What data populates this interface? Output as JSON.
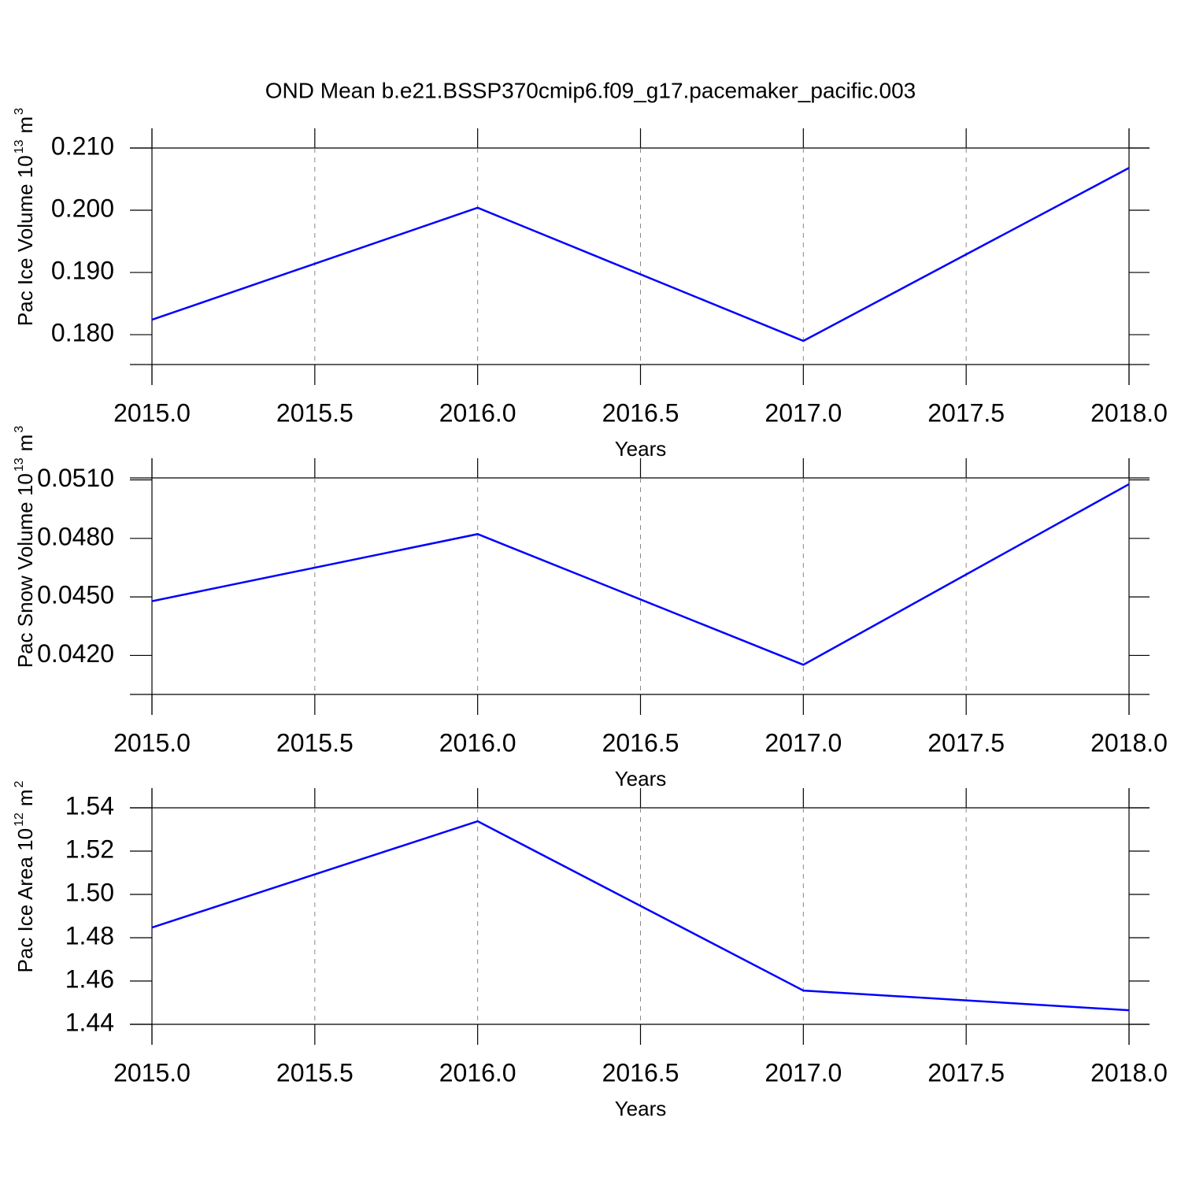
{
  "chart_data": [
    {
      "type": "line",
      "title": "OND Mean b.e21.BSSP370cmip6.f09_g17.pacemaker_pacific.003",
      "x": [
        2015,
        2016,
        2017,
        2018
      ],
      "values": [
        0.1824,
        0.2004,
        0.179,
        0.2068
      ],
      "color": "#0000ff",
      "xlim": [
        2015,
        2018
      ],
      "xticks": [
        {
          "value": 2015,
          "label": "2015.0"
        },
        {
          "value": 2015.5,
          "label": "2015.5"
        },
        {
          "value": 2016,
          "label": "2016.0"
        },
        {
          "value": 2016.5,
          "label": "2016.5"
        },
        {
          "value": 2017,
          "label": "2017.0"
        },
        {
          "value": 2017.5,
          "label": "2017.5"
        },
        {
          "value": 2018,
          "label": "2018.0"
        }
      ],
      "ylim": [
        0.1752,
        0.21
      ],
      "yticks": [
        {
          "value": 0.18,
          "label": "0.180"
        },
        {
          "value": 0.19,
          "label": "0.190"
        },
        {
          "value": 0.2,
          "label": "0.200"
        },
        {
          "value": 0.21,
          "label": "0.210"
        }
      ],
      "xlabel": "Years",
      "ylabel": [
        "Pac Ice Volume 10",
        "13",
        "m",
        "3"
      ],
      "grid": true
    },
    {
      "type": "line",
      "x": [
        2015,
        2016,
        2017,
        2018
      ],
      "values": [
        0.04478,
        0.04822,
        0.04152,
        0.05078
      ],
      "color": "#0000ff",
      "xlim": [
        2015,
        2018
      ],
      "xticks": [
        {
          "value": 2015,
          "label": "2015.0"
        },
        {
          "value": 2015.5,
          "label": "2015.5"
        },
        {
          "value": 2016,
          "label": "2016.0"
        },
        {
          "value": 2016.5,
          "label": "2016.5"
        },
        {
          "value": 2017,
          "label": "2017.0"
        },
        {
          "value": 2017.5,
          "label": "2017.5"
        },
        {
          "value": 2018,
          "label": "2018.0"
        }
      ],
      "ylim": [
        0.04,
        0.0511
      ],
      "yticks": [
        {
          "value": 0.042,
          "label": "0.0420"
        },
        {
          "value": 0.045,
          "label": "0.0450"
        },
        {
          "value": 0.048,
          "label": "0.0480"
        },
        {
          "value": 0.051,
          "label": "0.0510"
        }
      ],
      "xlabel": "Years",
      "ylabel": [
        "Pac Snow Volume 10",
        "13",
        "m",
        "3"
      ],
      "grid": true
    },
    {
      "type": "line",
      "x": [
        2015,
        2016,
        2017,
        2018
      ],
      "values": [
        1.4847,
        1.5338,
        1.4556,
        1.4465
      ],
      "color": "#0000ff",
      "xlim": [
        2015,
        2018
      ],
      "xticks": [
        {
          "value": 2015,
          "label": "2015.0"
        },
        {
          "value": 2015.5,
          "label": "2015.5"
        },
        {
          "value": 2016,
          "label": "2016.0"
        },
        {
          "value": 2016.5,
          "label": "2016.5"
        },
        {
          "value": 2017,
          "label": "2017.0"
        },
        {
          "value": 2017.5,
          "label": "2017.5"
        },
        {
          "value": 2018,
          "label": "2018.0"
        }
      ],
      "ylim": [
        1.44,
        1.54
      ],
      "yticks": [
        1.44,
        1.46,
        1.48,
        {
          "value": 1.5,
          "label": "1.50"
        },
        1.52,
        1.54
      ],
      "xlabel": "Years",
      "ylabel": [
        "Pac Ice Area 10",
        "12",
        "m",
        "2"
      ],
      "grid": true
    }
  ]
}
